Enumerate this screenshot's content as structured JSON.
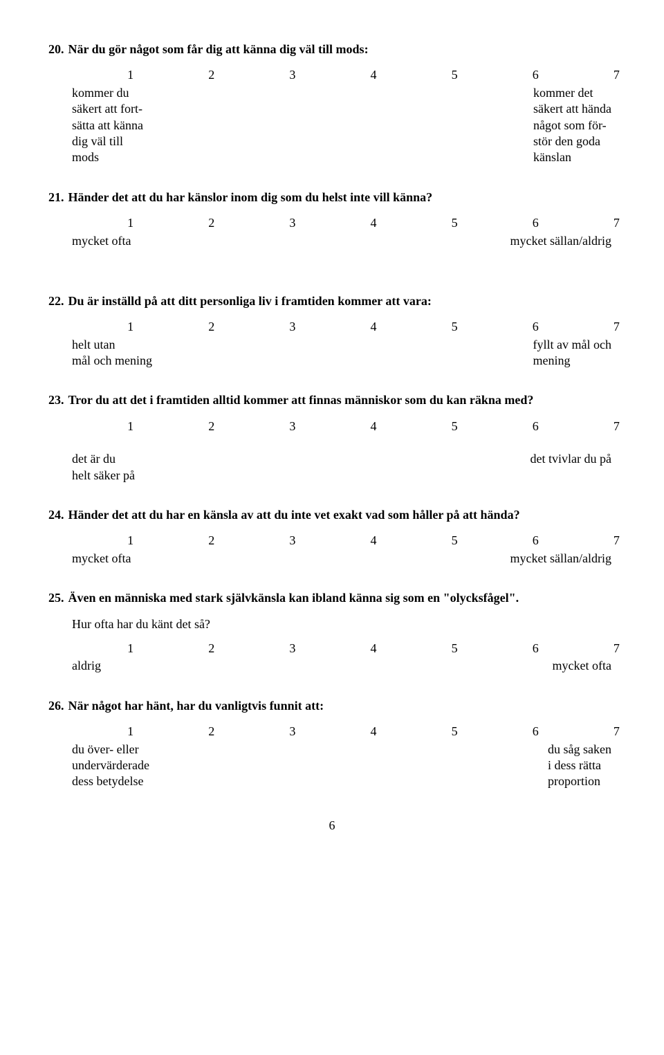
{
  "page_number": "6",
  "scale_numbers": [
    "1",
    "2",
    "3",
    "4",
    "5",
    "6",
    "7"
  ],
  "questions": [
    {
      "number": "20.",
      "text": "När du gör något som får dig att känna dig väl till mods:",
      "subtext": "",
      "left_anchor": "kommer du\nsäkert att fort-\nsätta att känna\ndig väl till\nmods",
      "right_anchor": "kommer det\nsäkert att hända\nnågot som för-\nstör den goda\nkänslan"
    },
    {
      "number": "21.",
      "text": "Händer det att du har känslor inom dig som du helst inte vill känna?",
      "subtext": "",
      "left_anchor": "mycket ofta",
      "right_anchor": "mycket sällan/aldrig"
    },
    {
      "number": "22.",
      "text": "Du är inställd på att ditt personliga liv i framtiden kommer att vara:",
      "subtext": "",
      "left_anchor": "helt utan\nmål och mening",
      "right_anchor": "fyllt av mål och\nmening"
    },
    {
      "number": "23.",
      "text": "Tror du att det i framtiden alltid kommer att finnas människor som du kan räkna med?",
      "subtext": "",
      "left_anchor": "det är du\nhelt säker på",
      "right_anchor": "det tvivlar du på",
      "gap_after_scale": true
    },
    {
      "number": "24.",
      "text": "Händer det att du har en känsla av att du inte vet exakt vad som håller på att hända?",
      "subtext": "",
      "left_anchor": "mycket ofta",
      "right_anchor": "mycket sällan/aldrig"
    },
    {
      "number": "25.",
      "text": "Även en människa med stark självkänsla kan ibland känna sig som en \"olycksfågel\".",
      "subtext": "Hur ofta har du känt det så?",
      "left_anchor": "aldrig",
      "right_anchor": "mycket ofta"
    },
    {
      "number": "26.",
      "text": "När något har hänt, har du vanligtvis funnit att:",
      "subtext": "",
      "left_anchor": "du över- eller\nundervärderade\ndess betydelse",
      "right_anchor": "du såg saken\ni dess rätta\nproportion",
      "tight": true
    }
  ]
}
